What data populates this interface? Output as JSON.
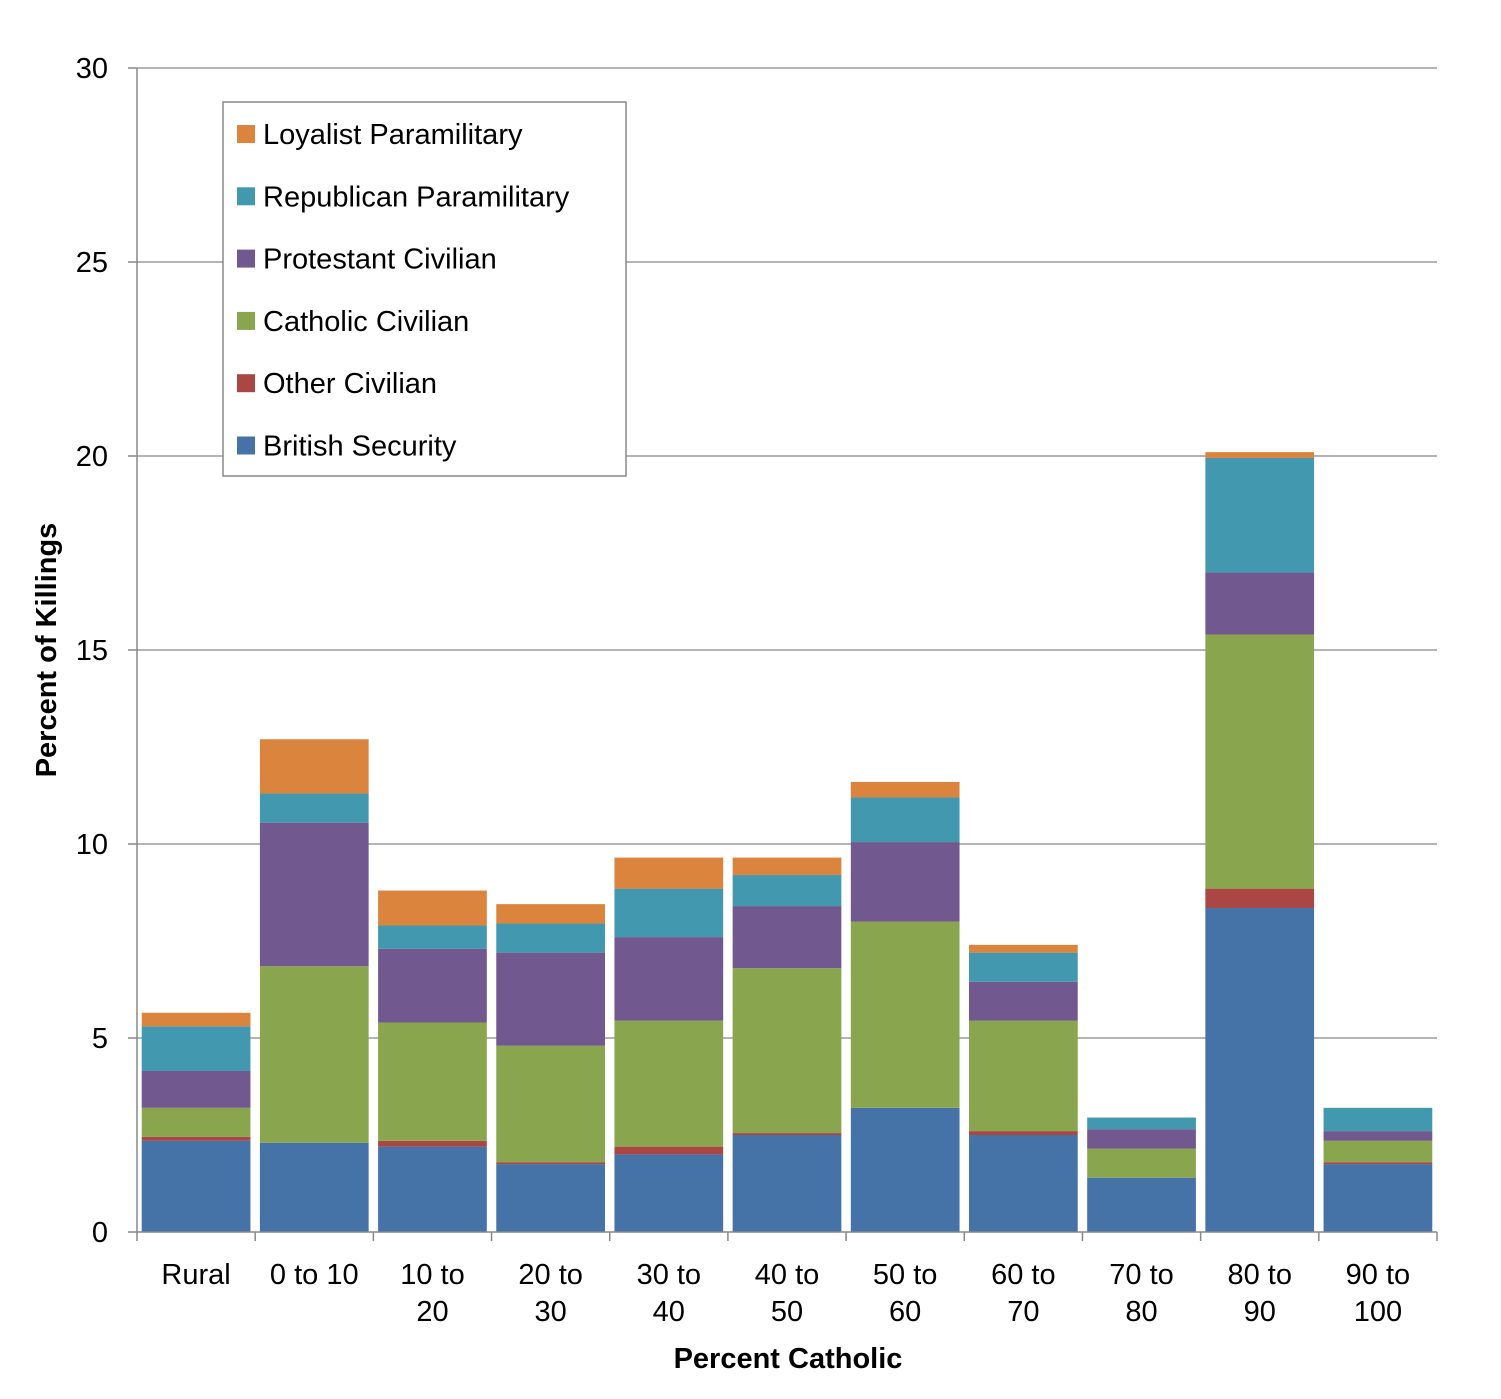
{
  "chart_data": {
    "type": "bar",
    "stacked": true,
    "xlabel": "Percent Catholic",
    "ylabel": "Percent of Killings",
    "ylim": [
      0,
      30
    ],
    "yticks": [
      0,
      5,
      10,
      15,
      20,
      25,
      30
    ],
    "grid": true,
    "legend_position": "top-left",
    "categories": [
      [
        "Rural"
      ],
      [
        "0 to 10"
      ],
      [
        "10 to",
        "20"
      ],
      [
        "20 to",
        "30"
      ],
      [
        "30 to",
        "40"
      ],
      [
        "40 to",
        "50"
      ],
      [
        "50 to",
        "60"
      ],
      [
        "60 to",
        "70"
      ],
      [
        "70 to",
        "80"
      ],
      [
        "80 to",
        "90"
      ],
      [
        "90 to",
        "100"
      ]
    ],
    "series": [
      {
        "name": "British Security",
        "color": "#4572A7",
        "values": [
          2.35,
          2.3,
          2.2,
          1.75,
          2.0,
          2.5,
          3.2,
          2.5,
          1.4,
          8.35,
          1.75
        ]
      },
      {
        "name": "Other Civilian",
        "color": "#AA4643",
        "values": [
          0.1,
          0.0,
          0.15,
          0.05,
          0.2,
          0.05,
          0.0,
          0.1,
          0.0,
          0.5,
          0.05
        ]
      },
      {
        "name": "Catholic Civilian",
        "color": "#89A54E",
        "values": [
          0.75,
          4.55,
          3.05,
          3.0,
          3.25,
          4.25,
          4.8,
          2.85,
          0.75,
          6.55,
          0.55
        ]
      },
      {
        "name": "Protestant Civilian",
        "color": "#71588F",
        "values": [
          0.95,
          3.7,
          1.9,
          2.4,
          2.15,
          1.6,
          2.05,
          1.0,
          0.5,
          1.6,
          0.25
        ]
      },
      {
        "name": "Republican Paramilitary",
        "color": "#4198AF",
        "values": [
          1.15,
          0.75,
          0.6,
          0.75,
          1.25,
          0.8,
          1.15,
          0.75,
          0.3,
          2.95,
          0.6
        ]
      },
      {
        "name": "Loyalist Paramilitary",
        "color": "#DB843D",
        "values": [
          0.35,
          1.4,
          0.9,
          0.5,
          0.8,
          0.45,
          0.4,
          0.2,
          0.0,
          0.15,
          0.0
        ]
      }
    ],
    "legend_order": [
      "Loyalist Paramilitary",
      "Republican Paramilitary",
      "Protestant Civilian",
      "Catholic Civilian",
      "Other Civilian",
      "British Security"
    ]
  }
}
